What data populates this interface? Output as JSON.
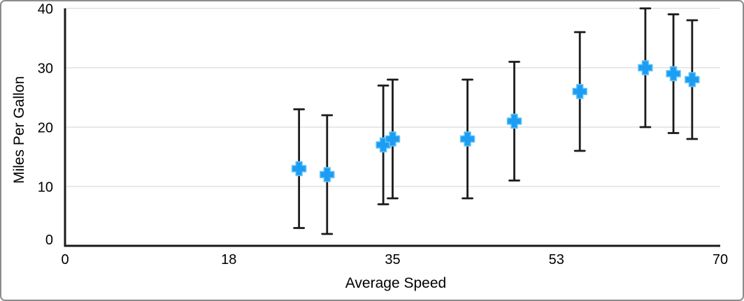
{
  "chart_data": {
    "type": "scatter",
    "title": "",
    "xlabel": "Average Speed",
    "ylabel": "Miles Per Gallon",
    "xlim": [
      0,
      70
    ],
    "ylim": [
      0,
      40
    ],
    "grid": "horizontal",
    "legend": "none",
    "x_ticks": [
      {
        "value": 0,
        "label": "0"
      },
      {
        "value": 17.5,
        "label": "18"
      },
      {
        "value": 35,
        "label": "35"
      },
      {
        "value": 52.5,
        "label": "53"
      },
      {
        "value": 70,
        "label": "70"
      }
    ],
    "y_ticks": [
      {
        "value": 0,
        "label": "0"
      },
      {
        "value": 10,
        "label": "10"
      },
      {
        "value": 20,
        "label": "20"
      },
      {
        "value": 30,
        "label": "30"
      },
      {
        "value": 40,
        "label": "40"
      }
    ],
    "series": [
      {
        "marker": "plus",
        "points": [
          {
            "x": 25,
            "y": 13,
            "error_minus": 10,
            "error_plus": 10
          },
          {
            "x": 28,
            "y": 12,
            "error_minus": 10,
            "error_plus": 10
          },
          {
            "x": 34,
            "y": 17,
            "error_minus": 10,
            "error_plus": 10
          },
          {
            "x": 35,
            "y": 18,
            "error_minus": 10,
            "error_plus": 10
          },
          {
            "x": 43,
            "y": 18,
            "error_minus": 10,
            "error_plus": 10
          },
          {
            "x": 48,
            "y": 21,
            "error_minus": 10,
            "error_plus": 10
          },
          {
            "x": 55,
            "y": 26,
            "error_minus": 10,
            "error_plus": 10
          },
          {
            "x": 62,
            "y": 30,
            "error_minus": 10,
            "error_plus": 10
          },
          {
            "x": 65,
            "y": 29,
            "error_minus": 10,
            "error_plus": 10
          },
          {
            "x": 67,
            "y": 28,
            "error_minus": 10,
            "error_plus": 10
          }
        ]
      }
    ],
    "error_bars": {
      "direction": "vertical",
      "type": "fixed",
      "value": 10
    },
    "colors": {
      "series_fill": "#1b9df3",
      "series_edge": "#66c4f8",
      "error_bar": "#1a1a1a",
      "axis": "#1a1a1a",
      "grid": "#e1e1e1",
      "text": "#000000",
      "frame": "#8c8c8c"
    }
  }
}
